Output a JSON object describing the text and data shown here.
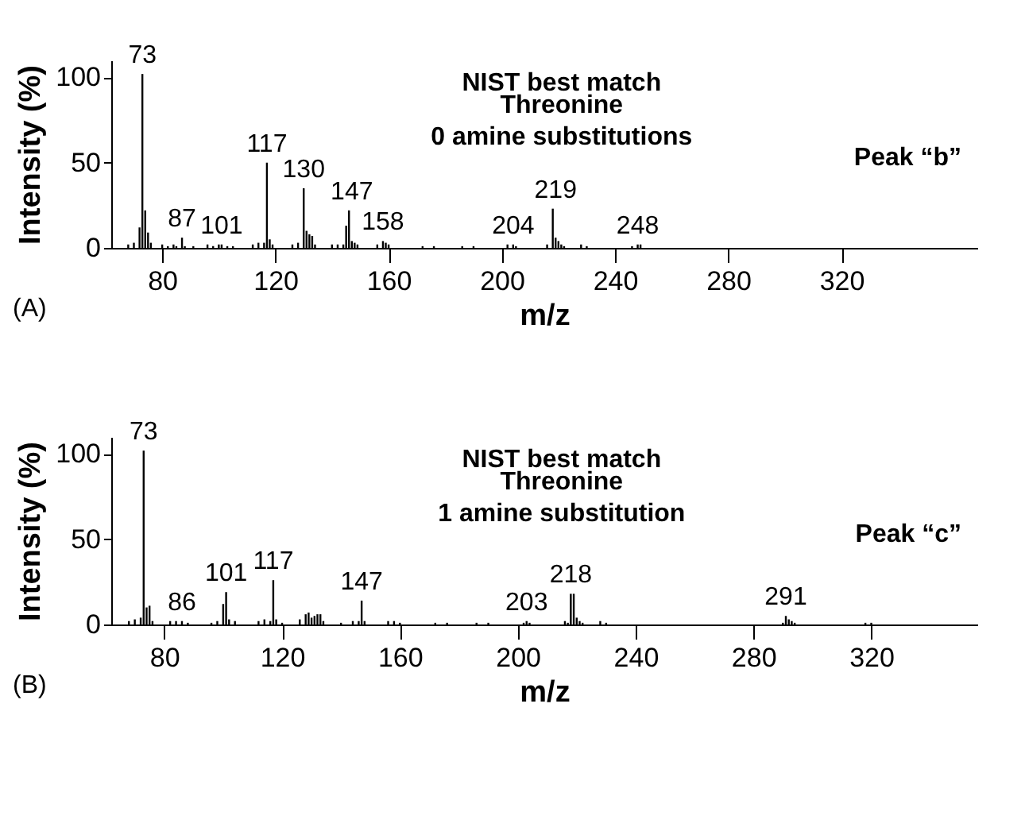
{
  "chart_data": [
    {
      "type": "bar",
      "title": "NIST best match",
      "subtitle": "Threonine",
      "xlabel": "m/z",
      "ylabel": "Intensity (%)",
      "color": "#000000",
      "x": [
        68,
        70,
        72,
        73,
        74,
        75,
        76,
        80,
        82,
        84,
        85,
        87,
        88,
        91,
        96,
        98,
        100,
        101,
        103,
        105,
        112,
        114,
        116,
        117,
        118,
        119,
        126,
        128,
        130,
        131,
        132,
        133,
        134,
        140,
        142,
        144,
        145,
        146,
        147,
        148,
        149,
        156,
        158,
        159,
        160,
        172,
        176,
        186,
        190,
        202,
        204,
        205,
        216,
        218,
        219,
        220,
        221,
        222,
        228,
        230,
        246,
        248,
        249
      ],
      "values": [
        2,
        3,
        12,
        102,
        22,
        9,
        3,
        2,
        1,
        2,
        1,
        6,
        1,
        1,
        2,
        1,
        2,
        2,
        1,
        1,
        2,
        3,
        3,
        50,
        5,
        2,
        2,
        3,
        35,
        10,
        8,
        7,
        2,
        2,
        2,
        2,
        13,
        22,
        4,
        3,
        2,
        2,
        4,
        3,
        2,
        1,
        1,
        1,
        1,
        2,
        2,
        1,
        2,
        23,
        6,
        4,
        2,
        1,
        2,
        1,
        1,
        2,
        2
      ],
      "xlim": [
        62,
        368
      ],
      "ylim": [
        0,
        110
      ],
      "xticks": [
        80,
        120,
        160,
        200,
        240,
        280,
        320
      ],
      "yticks": [
        0,
        50,
        100
      ],
      "annotations": [
        "0 amine substitutions",
        "Peak “b”",
        "(A)",
        {
          "text": "73",
          "x": 73,
          "y": 102
        },
        {
          "text": "87",
          "x": 87,
          "y": 6
        },
        {
          "text": "101",
          "x": 101,
          "y": 2
        },
        {
          "text": "117",
          "x": 117,
          "y": 50
        },
        {
          "text": "130",
          "x": 130,
          "y": 35
        },
        {
          "text": "147",
          "x": 147,
          "y": 22
        },
        {
          "text": "158",
          "x": 158,
          "y": 4
        },
        {
          "text": "204",
          "x": 204,
          "y": 2
        },
        {
          "text": "219",
          "x": 219,
          "y": 23
        },
        {
          "text": "248",
          "x": 248,
          "y": 2
        }
      ]
    },
    {
      "type": "bar",
      "title": "NIST best match",
      "subtitle": "Threonine",
      "xlabel": "m/z",
      "ylabel": "Intensity (%)",
      "color": "#000000",
      "x": [
        68,
        70,
        72,
        73,
        74,
        75,
        76,
        82,
        84,
        86,
        88,
        96,
        98,
        100,
        101,
        102,
        104,
        112,
        114,
        116,
        117,
        118,
        120,
        126,
        128,
        129,
        130,
        131,
        132,
        133,
        134,
        140,
        144,
        146,
        147,
        148,
        156,
        158,
        160,
        172,
        176,
        186,
        190,
        202,
        203,
        204,
        216,
        217,
        218,
        219,
        220,
        221,
        222,
        228,
        230,
        290,
        291,
        292,
        293,
        294,
        318,
        320
      ],
      "values": [
        2,
        3,
        4,
        102,
        10,
        11,
        2,
        2,
        2,
        2,
        1,
        1,
        2,
        12,
        19,
        3,
        2,
        2,
        3,
        2,
        26,
        3,
        1,
        3,
        6,
        7,
        4,
        5,
        6,
        6,
        2,
        1,
        2,
        2,
        14,
        2,
        2,
        2,
        1,
        1,
        1,
        1,
        1,
        1,
        2,
        1,
        2,
        1,
        18,
        18,
        4,
        2,
        1,
        2,
        1,
        1,
        5,
        3,
        2,
        1,
        1,
        1
      ],
      "xlim": [
        62,
        356
      ],
      "ylim": [
        0,
        110
      ],
      "xticks": [
        80,
        120,
        160,
        200,
        240,
        280,
        320
      ],
      "yticks": [
        0,
        50,
        100
      ],
      "annotations": [
        "1 amine substitution",
        "Peak “c”",
        "(B)",
        {
          "text": "73",
          "x": 73,
          "y": 102
        },
        {
          "text": "86",
          "x": 86,
          "y": 2
        },
        {
          "text": "101",
          "x": 101,
          "y": 19
        },
        {
          "text": "117",
          "x": 117,
          "y": 26
        },
        {
          "text": "147",
          "x": 147,
          "y": 14
        },
        {
          "text": "203",
          "x": 203,
          "y": 2
        },
        {
          "text": "218",
          "x": 218,
          "y": 18
        },
        {
          "text": "291",
          "x": 291,
          "y": 5
        }
      ]
    }
  ]
}
